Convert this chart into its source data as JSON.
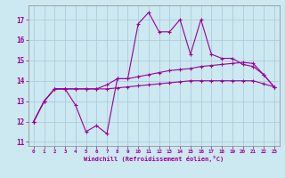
{
  "xlabel": "Windchill (Refroidissement éolien,°C)",
  "background_color": "#cce8f0",
  "line_color": "#990099",
  "xlim": [
    -0.5,
    23.5
  ],
  "ylim": [
    10.8,
    17.7
  ],
  "xticks": [
    0,
    1,
    2,
    3,
    4,
    5,
    6,
    7,
    8,
    9,
    10,
    11,
    12,
    13,
    14,
    15,
    16,
    17,
    18,
    19,
    20,
    21,
    22,
    23
  ],
  "yticks": [
    11,
    12,
    13,
    14,
    15,
    16,
    17
  ],
  "line1_y": [
    12.0,
    13.0,
    13.6,
    13.6,
    12.8,
    11.5,
    11.8,
    11.4,
    14.1,
    14.1,
    16.8,
    17.35,
    16.4,
    16.4,
    17.0,
    15.3,
    17.0,
    15.3,
    15.1,
    15.1,
    14.8,
    14.7,
    14.3,
    13.7
  ],
  "line2_y": [
    12.0,
    13.0,
    13.6,
    13.6,
    13.6,
    13.6,
    13.6,
    13.8,
    14.1,
    14.1,
    14.2,
    14.3,
    14.4,
    14.5,
    14.55,
    14.6,
    14.7,
    14.75,
    14.8,
    14.85,
    14.9,
    14.85,
    14.3,
    13.7
  ],
  "line3_y": [
    12.0,
    13.0,
    13.6,
    13.6,
    13.6,
    13.6,
    13.6,
    13.6,
    13.65,
    13.7,
    13.75,
    13.8,
    13.85,
    13.9,
    13.95,
    14.0,
    14.0,
    14.0,
    14.0,
    14.0,
    14.0,
    14.0,
    13.85,
    13.7
  ]
}
